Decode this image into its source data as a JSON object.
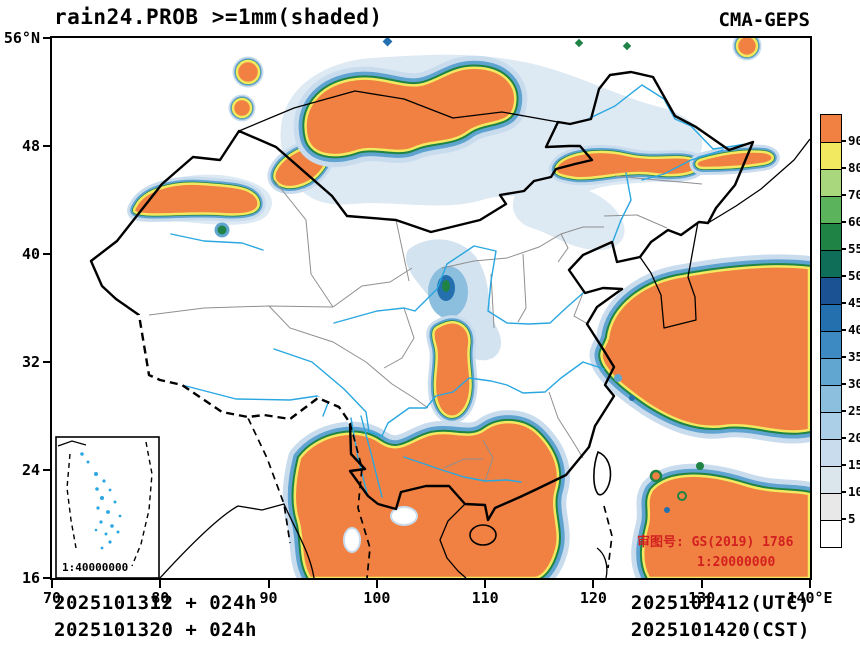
{
  "header": {
    "title": "rain24.PROB >=1mm(shaded)",
    "model_label": "CMA-GEPS"
  },
  "axes": {
    "y_tick_labels": [
      "56°N",
      "48",
      "40",
      "32",
      "24",
      "16"
    ],
    "x_tick_labels": [
      "70",
      "80",
      "90",
      "100",
      "110",
      "120",
      "130",
      "140°E"
    ]
  },
  "colorbar": {
    "tick_values_bottom_to_top": [
      "5",
      "10",
      "15",
      "20",
      "25",
      "30",
      "35",
      "40",
      "45",
      "50",
      "55",
      "60",
      "70",
      "80",
      "90"
    ],
    "cell_colors_bottom_to_top": [
      "#ffffff",
      "#e8e8e8",
      "#dbe5ec",
      "#c9dcee",
      "#abcfe7",
      "#8cbede",
      "#61a5d1",
      "#3c8ac1",
      "#2470ae",
      "#1a5293",
      "#0f6e57",
      "#1e8345",
      "#5bb35b",
      "#a8d77e",
      "#f2e960",
      "#f08142"
    ]
  },
  "annotations": {
    "license_line1": "审图号: GS(2019) 1786",
    "license_line2": "1:20000000",
    "inset_scale": "1:40000000"
  },
  "footer": {
    "init_time_utc": "2025101312 + 024h",
    "init_time_cst": "2025101320 + 024h",
    "valid_time_utc": "2025101412(UTC)",
    "valid_time_cst": "2025101420(CST)"
  },
  "chart_data": {
    "type": "heatmap",
    "title": "rain24.PROB >=1mm(shaded)",
    "model": "CMA-GEPS",
    "x_axis": {
      "range": [
        70,
        140
      ],
      "ticks": [
        70,
        80,
        90,
        100,
        110,
        120,
        130,
        140
      ],
      "unit": "°E"
    },
    "y_axis": {
      "range": [
        16,
        56
      ],
      "ticks": [
        16,
        24,
        32,
        40,
        48,
        56
      ],
      "unit": "°N"
    },
    "shading_levels_percent": [
      5,
      10,
      15,
      20,
      25,
      30,
      35,
      40,
      45,
      50,
      55,
      60,
      70,
      80,
      90
    ],
    "palette_low_to_high": [
      "#ffffff",
      "#e8e8e8",
      "#dbe5ec",
      "#c9dcee",
      "#abcfe7",
      "#8cbede",
      "#61a5d1",
      "#3c8ac1",
      "#2470ae",
      "#1a5293",
      "#0f6e57",
      "#1e8345",
      "#5bb35b",
      "#a8d77e",
      "#f2e960",
      "#f08142"
    ]
  }
}
